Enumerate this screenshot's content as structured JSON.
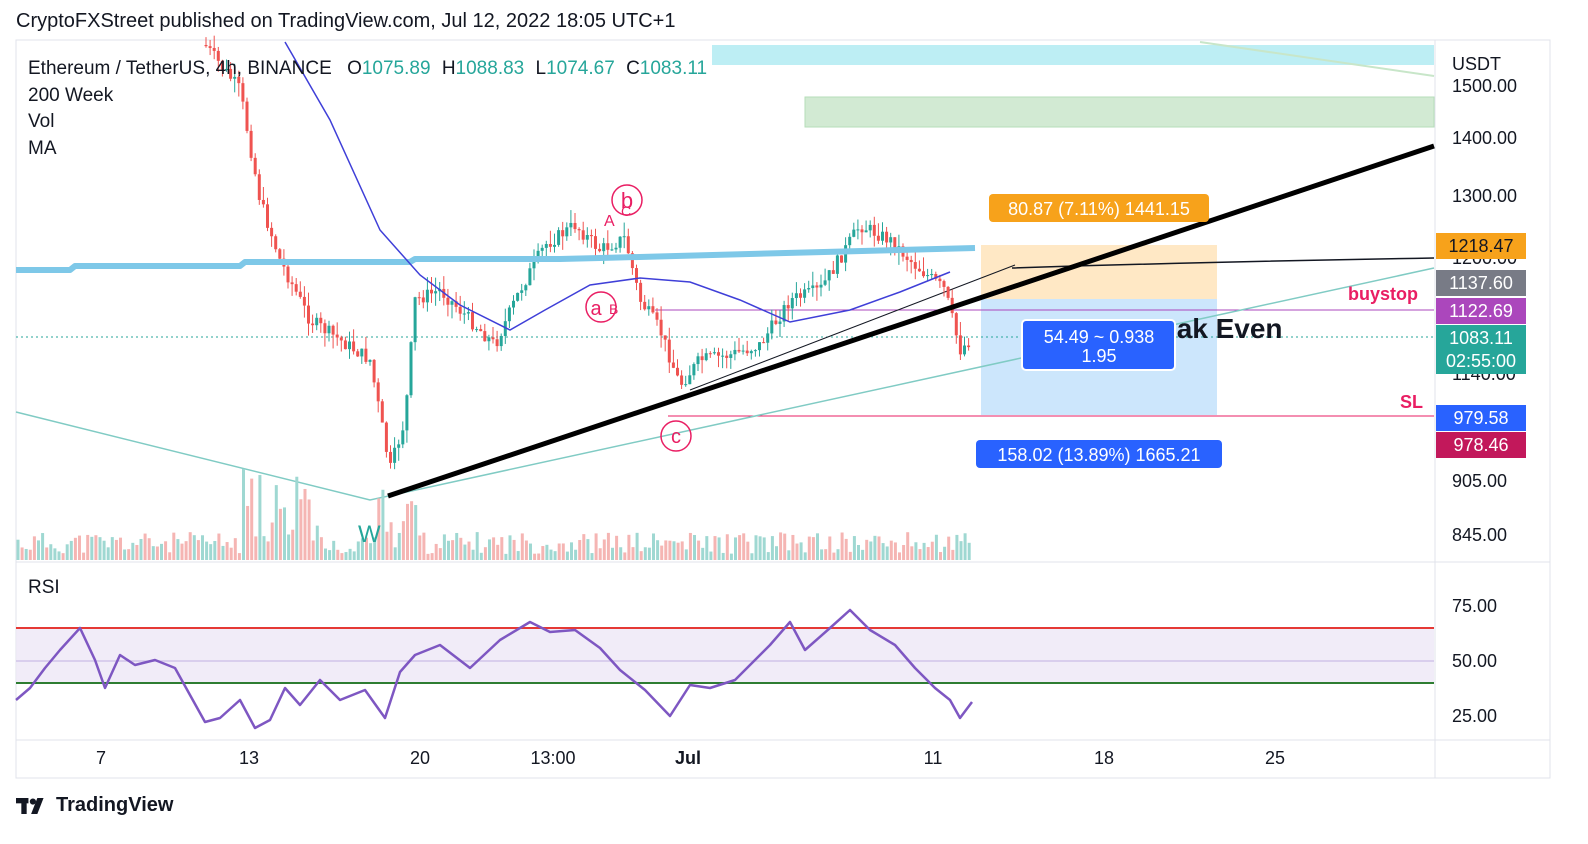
{
  "header": {
    "published": "CryptoFXStreet published on TradingView.com, Jul 12, 2022 18:05 UTC+1"
  },
  "legend": {
    "symbol": "Ethereum / TetherUS, 4h, BINANCE",
    "o_label": "O",
    "o_value": "1075.89",
    "h_label": "H",
    "h_value": "1088.83",
    "l_label": "L",
    "l_value": "1074.67",
    "c_label": "C",
    "c_value": "1083.11",
    "ind1": "200 Week",
    "ind2": "Vol",
    "ind3": "MA"
  },
  "footer": {
    "brand": "TradingView"
  },
  "colors": {
    "up": "#26a69a",
    "down": "#ef5350",
    "ma200w": "#7ec8e8",
    "ma": "#3f3fd8",
    "rsi": "#7e57c2"
  },
  "chart_data": [
    {
      "type": "candlestick",
      "ylabel": "USDT",
      "y_ticks": [
        "1500.00",
        "1400.00",
        "1300.00",
        "1200.00",
        "1140.00",
        "905.00",
        "845.00"
      ],
      "x_ticks": [
        "7",
        "13",
        "20",
        "13:00",
        "Jul",
        "11",
        "18",
        "25"
      ],
      "price_labels": [
        {
          "text": "1218.47",
          "bg": "#f7a21b",
          "fg": "#131722"
        },
        {
          "text": "1137.60",
          "bg": "#787b86",
          "fg": "#ffffff"
        },
        {
          "text": "1122.69",
          "bg": "#ab47bc",
          "fg": "#ffffff"
        },
        {
          "text": "1083.11",
          "bg": "#26a69a",
          "fg": "#ffffff"
        },
        {
          "text": "02:55:00",
          "bg": "#26a69a",
          "fg": "#ffffff"
        },
        {
          "text": "979.58",
          "bg": "#2962ff",
          "fg": "#ffffff"
        },
        {
          "text": "978.46",
          "bg": "#c2185b",
          "fg": "#ffffff"
        }
      ],
      "annotations": {
        "buystop": "buystop",
        "sl": "SL",
        "break_even": "Break Even",
        "target_box": "80.87 (7.11%) 1441.15",
        "stop_box": "158.02 (13.89%) 1665.21",
        "ratio_line1": "54.49 ~ 0.938",
        "ratio_line2": "1.95",
        "wave_w": "W",
        "wave_a": "A",
        "wave_c_small": "C",
        "wave_b": "b",
        "wave_a_small": "a",
        "wave_B": "B",
        "wave_c": "c"
      }
    },
    {
      "type": "line",
      "title": "RSI",
      "y_ticks": [
        "75.00",
        "50.00",
        "25.00"
      ],
      "upper_band": 65,
      "lower_band": 40,
      "mid": 50
    }
  ]
}
